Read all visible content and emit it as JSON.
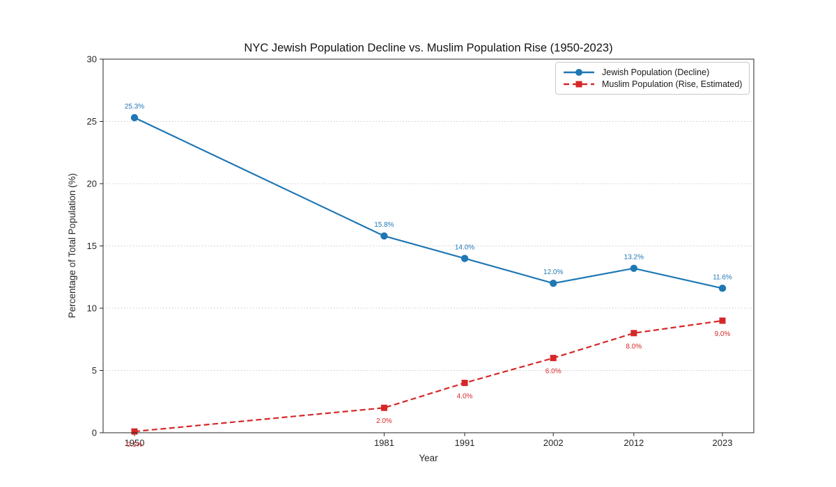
{
  "chart_data": {
    "type": "line",
    "title": "NYC Jewish Population Decline vs. Muslim Population Rise (1950-2023)",
    "xlabel": "Year",
    "ylabel": "Percentage of Total Population (%)",
    "x": [
      1950,
      1981,
      1991,
      2002,
      2012,
      2023
    ],
    "xtick_labels": [
      "1950",
      "1981",
      "1991",
      "2002",
      "2012",
      "2023"
    ],
    "ylim": [
      0,
      30
    ],
    "yticks": [
      0,
      5,
      10,
      15,
      20,
      25,
      30
    ],
    "ytick_labels": [
      "0",
      "5",
      "10",
      "15",
      "20",
      "25",
      "30"
    ],
    "grid": "horizontal-dotted",
    "legend_position": "top-right",
    "series": [
      {
        "name": "Jewish Population (Decline)",
        "values": [
          25.3,
          15.8,
          14.0,
          12.0,
          13.2,
          11.6
        ],
        "point_labels": [
          "25.3%",
          "15.8%",
          "14.0%",
          "12.0%",
          "13.2%",
          "11.6%"
        ],
        "color": "#1f77b4",
        "line_style": "solid",
        "marker": "circle",
        "label_side": "above"
      },
      {
        "name": "Muslim Population (Rise, Estimated)",
        "values": [
          0.1,
          2.0,
          4.0,
          6.0,
          8.0,
          9.0
        ],
        "point_labels": [
          "0.1%",
          "2.0%",
          "4.0%",
          "6.0%",
          "8.0%",
          "9.0%"
        ],
        "color": "#d62728",
        "line_style": "dashed",
        "marker": "square",
        "label_side": "below"
      }
    ]
  }
}
